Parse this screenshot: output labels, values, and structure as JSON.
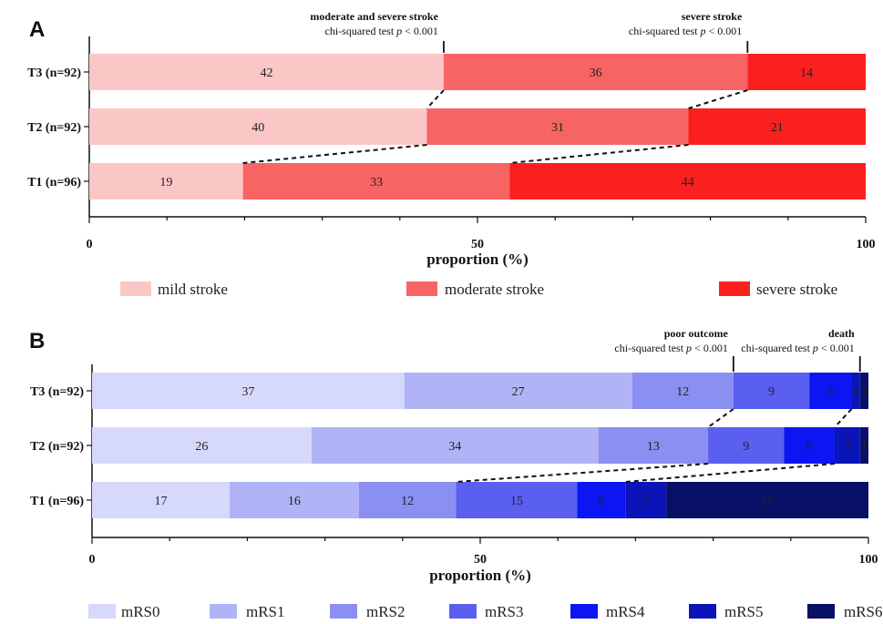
{
  "chart_data": [
    {
      "panel_label": "A",
      "type": "bar",
      "orientation": "horizontal",
      "stacked": true,
      "categories": [
        "T3 (n=92)",
        "T2 (n=92)",
        "T1 (n=96)"
      ],
      "series": [
        {
          "name": "mild stroke",
          "color": "#fbc6c6",
          "values": [
            42,
            40,
            19
          ]
        },
        {
          "name": "moderate stroke",
          "color": "#f76464",
          "values": [
            36,
            31,
            33
          ]
        },
        {
          "name": "severe stroke",
          "color": "#fa2020",
          "values": [
            14,
            21,
            44
          ]
        }
      ],
      "xlabel": "proportion (%)",
      "xlim": [
        0,
        100
      ],
      "xticks": [
        "0",
        "50",
        "100"
      ],
      "legend_position": "bottom",
      "annotations": [
        {
          "title": "moderate and severe stroke",
          "subtitle_prefix": "chi-squared test ",
          "subtitle_p": "p",
          "subtitle_suffix": " < 0.001",
          "x": 45.65
        },
        {
          "title": "severe stroke",
          "subtitle_prefix": "chi-squared test ",
          "subtitle_p": "p",
          "subtitle_suffix": " < 0.001",
          "x": 84.78
        }
      ]
    },
    {
      "panel_label": "B",
      "type": "bar",
      "orientation": "horizontal",
      "stacked": true,
      "categories": [
        "T3 (n=92)",
        "T2 (n=92)",
        "T1 (n=96)"
      ],
      "series": [
        {
          "name": "mRS0",
          "color": "#d6d9fb",
          "values": [
            37,
            26,
            17
          ]
        },
        {
          "name": "mRS1",
          "color": "#b0b4f6",
          "values": [
            27,
            34,
            16
          ]
        },
        {
          "name": "mRS2",
          "color": "#8b8ff2",
          "values": [
            12,
            13,
            12
          ]
        },
        {
          "name": "mRS3",
          "color": "#5a5ff0",
          "values": [
            9,
            9,
            15
          ]
        },
        {
          "name": "mRS4",
          "color": "#0b16f2",
          "values": [
            5,
            6,
            6
          ]
        },
        {
          "name": "mRS5",
          "color": "#0a14b8",
          "values": [
            1,
            3,
            5
          ]
        },
        {
          "name": "mRS6",
          "color": "#081068",
          "values": [
            1,
            1,
            25
          ]
        }
      ],
      "xlabel": "proportion (%)",
      "xlim": [
        0,
        100
      ],
      "xticks": [
        "0",
        "50",
        "100"
      ],
      "legend_position": "bottom",
      "annotations": [
        {
          "title": "poor outcome",
          "subtitle_prefix": "chi-squared test ",
          "subtitle_p": "p",
          "subtitle_suffix": " < 0.001",
          "x": 82.61
        },
        {
          "title": "death",
          "subtitle_prefix": "chi-squared test ",
          "subtitle_p": "p",
          "subtitle_suffix": " < 0.001",
          "x": 98.91
        }
      ]
    }
  ]
}
